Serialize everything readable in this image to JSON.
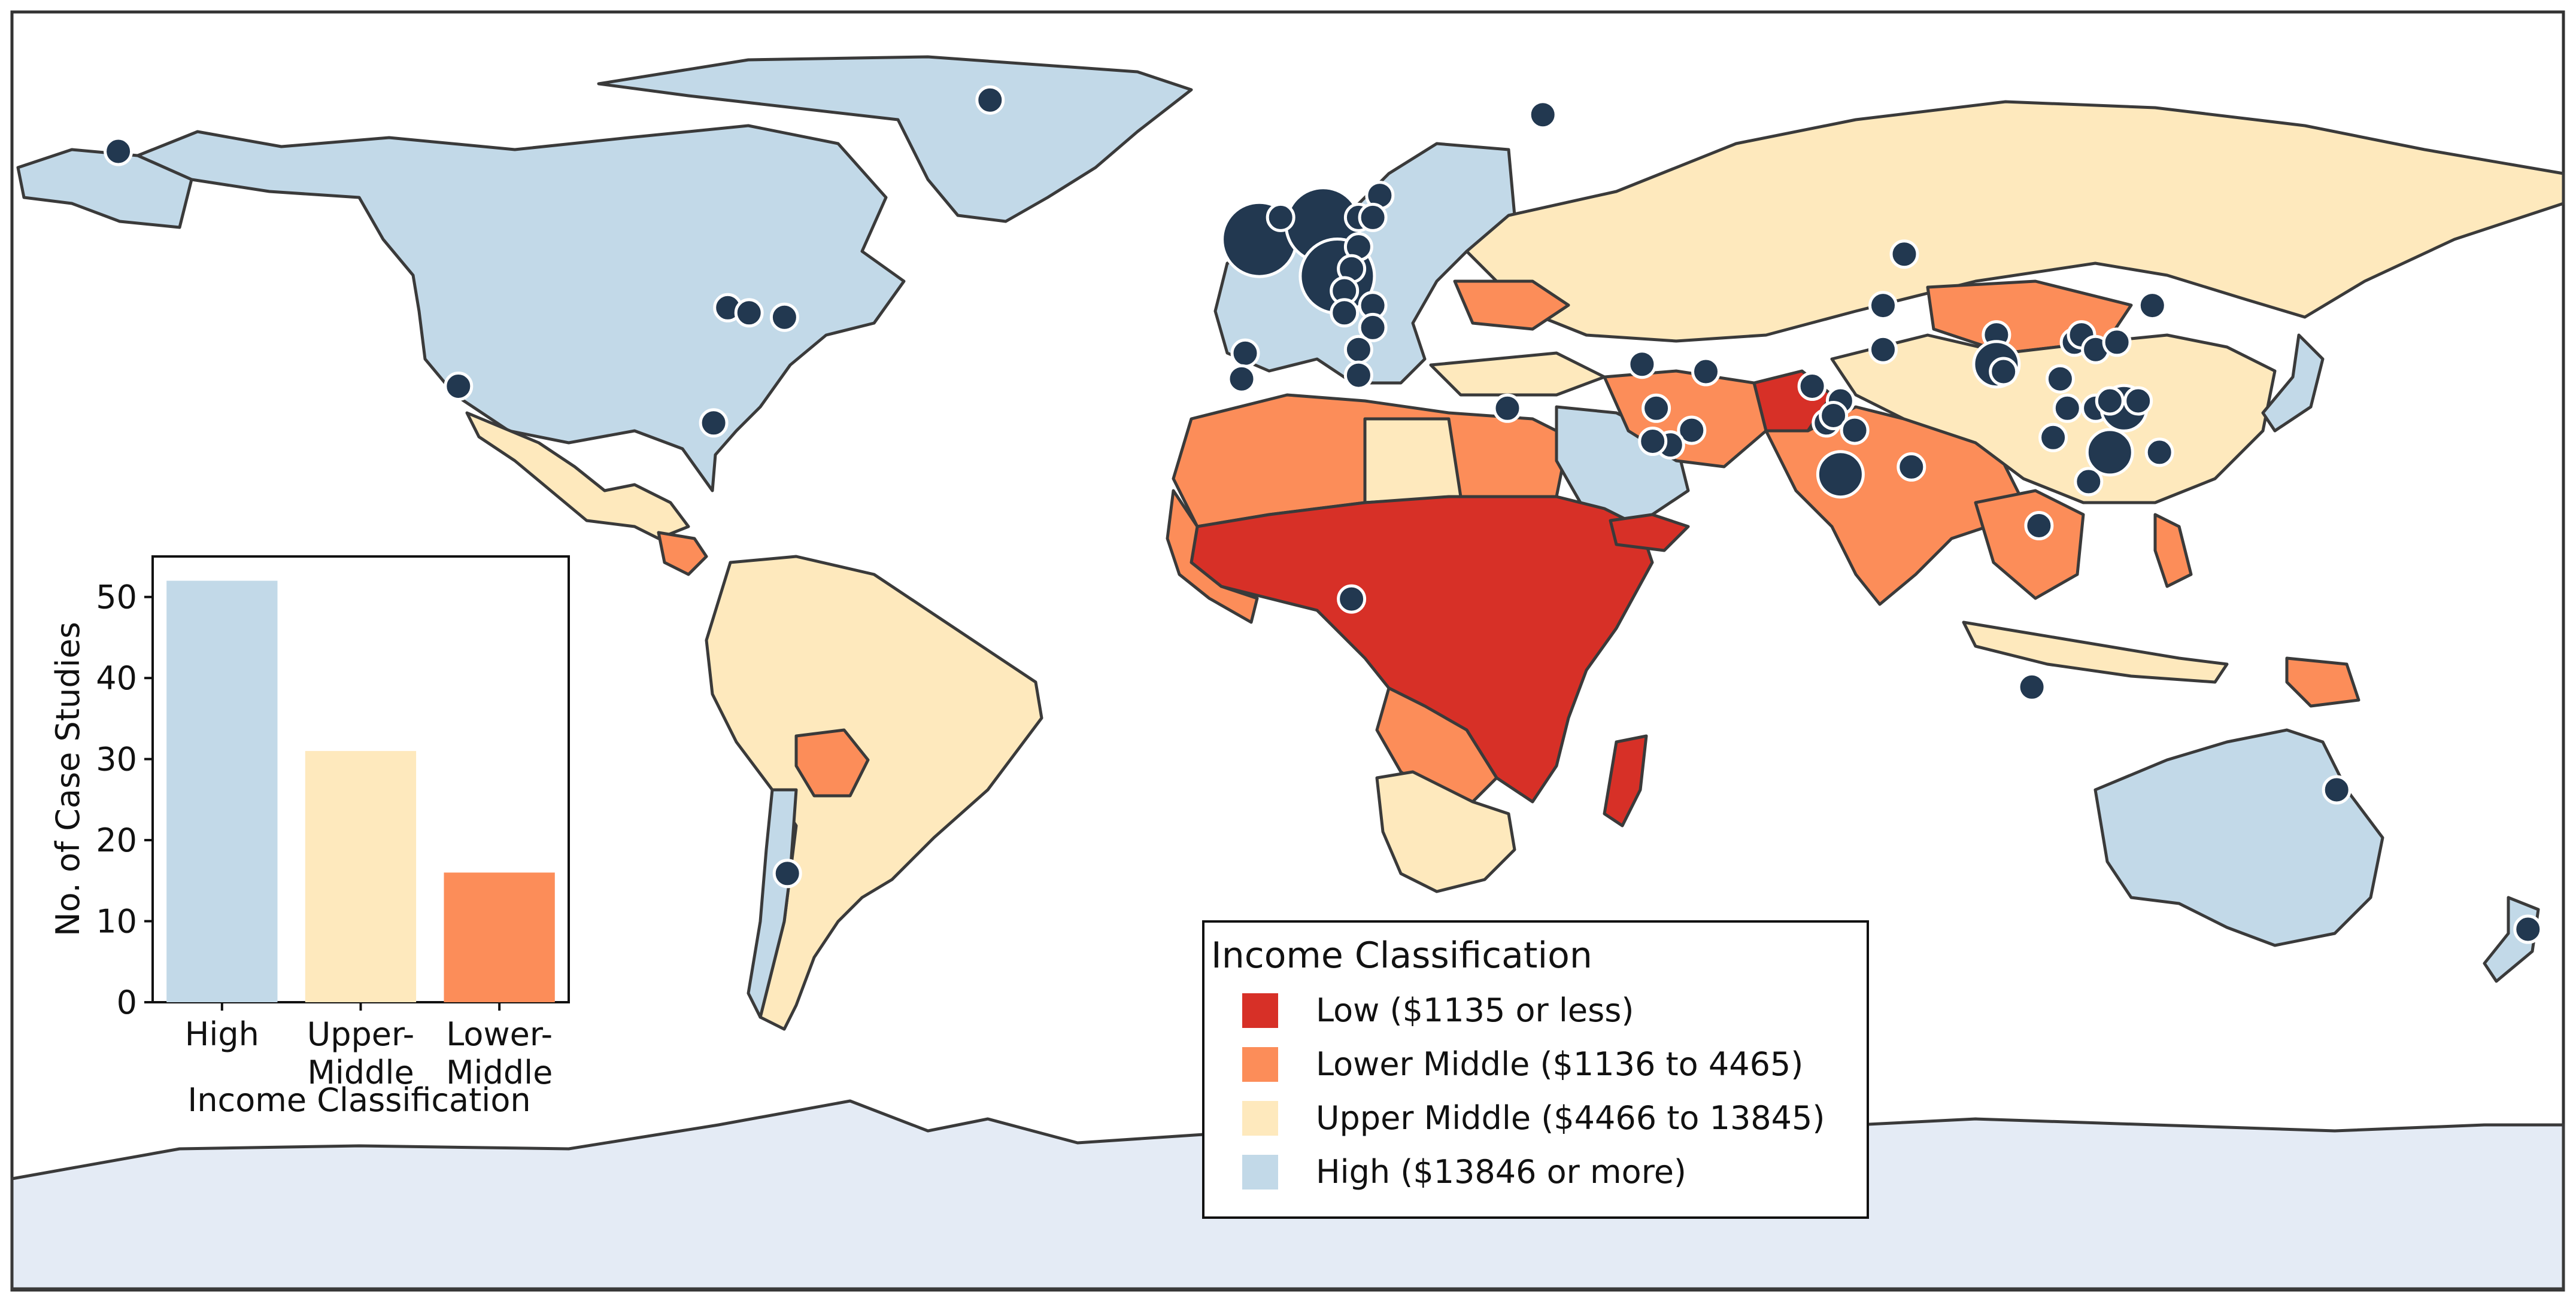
{
  "colors": {
    "low": "#d73027",
    "lower_middle": "#fc8d59",
    "upper_middle": "#fee9bd",
    "high": "#c2d9e8",
    "antarctica": "#e4ebf5",
    "ocean": "#ffffff",
    "border": "#3a3a3a",
    "marker": "#223850"
  },
  "legend": {
    "title": "Income Classification",
    "items": [
      {
        "label": "Low ($1135 or less)",
        "category": "low"
      },
      {
        "label": "Lower Middle ($1136 to 4465)",
        "category": "lower_middle"
      },
      {
        "label": "Upper Middle ($4466 to 13845)",
        "category": "upper_middle"
      },
      {
        "label": "High ($13846 or more)",
        "category": "high"
      }
    ]
  },
  "chart_data": {
    "type": "bar",
    "categories": [
      "High",
      "Upper-\nMiddle",
      "Lower-\nMiddle"
    ],
    "values": [
      52,
      31,
      16
    ],
    "bar_colors": [
      "#c2d9e8",
      "#fee9bd",
      "#fc8d59"
    ],
    "title": "",
    "xlabel": "Income Classification",
    "ylabel": "No. of Case Studies",
    "ylim": [
      0,
      55
    ],
    "yticks": [
      0,
      10,
      20,
      30,
      40,
      50
    ]
  },
  "case_study_markers": [
    {
      "lon": -165,
      "lat": 65,
      "size": "small"
    },
    {
      "lon": -42,
      "lat": 72,
      "size": "small"
    },
    {
      "lon": -79,
      "lat": 43.7,
      "size": "small"
    },
    {
      "lon": -76,
      "lat": 43,
      "size": "small"
    },
    {
      "lon": -71,
      "lat": 42.4,
      "size": "small"
    },
    {
      "lon": -117,
      "lat": 33,
      "size": "small"
    },
    {
      "lon": -81,
      "lat": 28,
      "size": "small"
    },
    {
      "lon": -70.6,
      "lat": -33.4,
      "size": "small"
    },
    {
      "lon": -4,
      "lat": 53,
      "size": "large"
    },
    {
      "lon": 5,
      "lat": 55,
      "size": "large"
    },
    {
      "lon": 7,
      "lat": 48,
      "size": "large"
    },
    {
      "lon": -1,
      "lat": 56,
      "size": "small"
    },
    {
      "lon": 10,
      "lat": 56,
      "size": "small"
    },
    {
      "lon": 10,
      "lat": 52,
      "size": "small"
    },
    {
      "lon": 9,
      "lat": 49,
      "size": "small"
    },
    {
      "lon": 13,
      "lat": 59,
      "size": "small"
    },
    {
      "lon": 12,
      "lat": 56,
      "size": "small"
    },
    {
      "lon": 8,
      "lat": 46,
      "size": "small"
    },
    {
      "lon": 12,
      "lat": 44,
      "size": "small"
    },
    {
      "lon": 12,
      "lat": 41,
      "size": "small"
    },
    {
      "lon": 8,
      "lat": 43,
      "size": "small"
    },
    {
      "lon": 10,
      "lat": 38,
      "size": "small"
    },
    {
      "lon": -6,
      "lat": 37.5,
      "size": "small"
    },
    {
      "lon": -6.5,
      "lat": 34,
      "size": "small"
    },
    {
      "lon": 10,
      "lat": 34.5,
      "size": "small"
    },
    {
      "lon": 31,
      "lat": 30,
      "size": "small"
    },
    {
      "lon": 36,
      "lat": 70,
      "size": "small"
    },
    {
      "lon": 50,
      "lat": 36,
      "size": "small"
    },
    {
      "lon": 59,
      "lat": 35,
      "size": "small"
    },
    {
      "lon": 52,
      "lat": 30,
      "size": "small"
    },
    {
      "lon": 57,
      "lat": 27,
      "size": "small"
    },
    {
      "lon": 54,
      "lat": 25,
      "size": "small"
    },
    {
      "lon": 51.5,
      "lat": 25.5,
      "size": "small"
    },
    {
      "lon": 9,
      "lat": 4,
      "size": "small"
    },
    {
      "lon": 74,
      "lat": 33,
      "size": "small"
    },
    {
      "lon": 78,
      "lat": 31,
      "size": "small"
    },
    {
      "lon": 76,
      "lat": 28,
      "size": "small"
    },
    {
      "lon": 77,
      "lat": 29,
      "size": "small"
    },
    {
      "lon": 80,
      "lat": 27,
      "size": "small"
    },
    {
      "lon": 78,
      "lat": 21,
      "size": "medium"
    },
    {
      "lon": 88,
      "lat": 22,
      "size": "small"
    },
    {
      "lon": 87,
      "lat": 51,
      "size": "small"
    },
    {
      "lon": 84,
      "lat": 44,
      "size": "small"
    },
    {
      "lon": 84,
      "lat": 38,
      "size": "small"
    },
    {
      "lon": 100,
      "lat": 40,
      "size": "small"
    },
    {
      "lon": 100,
      "lat": 36,
      "size": "medium"
    },
    {
      "lon": 101,
      "lat": 35,
      "size": "small"
    },
    {
      "lon": 109,
      "lat": 34,
      "size": "small"
    },
    {
      "lon": 111,
      "lat": 39,
      "size": "small"
    },
    {
      "lon": 112,
      "lat": 40,
      "size": "small"
    },
    {
      "lon": 114,
      "lat": 38,
      "size": "small"
    },
    {
      "lon": 117,
      "lat": 39,
      "size": "small"
    },
    {
      "lon": 122,
      "lat": 44,
      "size": "small"
    },
    {
      "lon": 110,
      "lat": 30,
      "size": "small"
    },
    {
      "lon": 114,
      "lat": 30,
      "size": "small"
    },
    {
      "lon": 118,
      "lat": 30,
      "size": "medium"
    },
    {
      "lon": 116,
      "lat": 31,
      "size": "small"
    },
    {
      "lon": 120,
      "lat": 31,
      "size": "small"
    },
    {
      "lon": 108,
      "lat": 26,
      "size": "small"
    },
    {
      "lon": 116,
      "lat": 24,
      "size": "medium"
    },
    {
      "lon": 113,
      "lat": 20,
      "size": "small"
    },
    {
      "lon": 123,
      "lat": 24,
      "size": "small"
    },
    {
      "lon": 106,
      "lat": 14,
      "size": "small"
    },
    {
      "lon": 105,
      "lat": -8,
      "size": "small"
    },
    {
      "lon": 148,
      "lat": -22,
      "size": "small"
    },
    {
      "lon": 175,
      "lat": -41,
      "size": "small"
    }
  ]
}
